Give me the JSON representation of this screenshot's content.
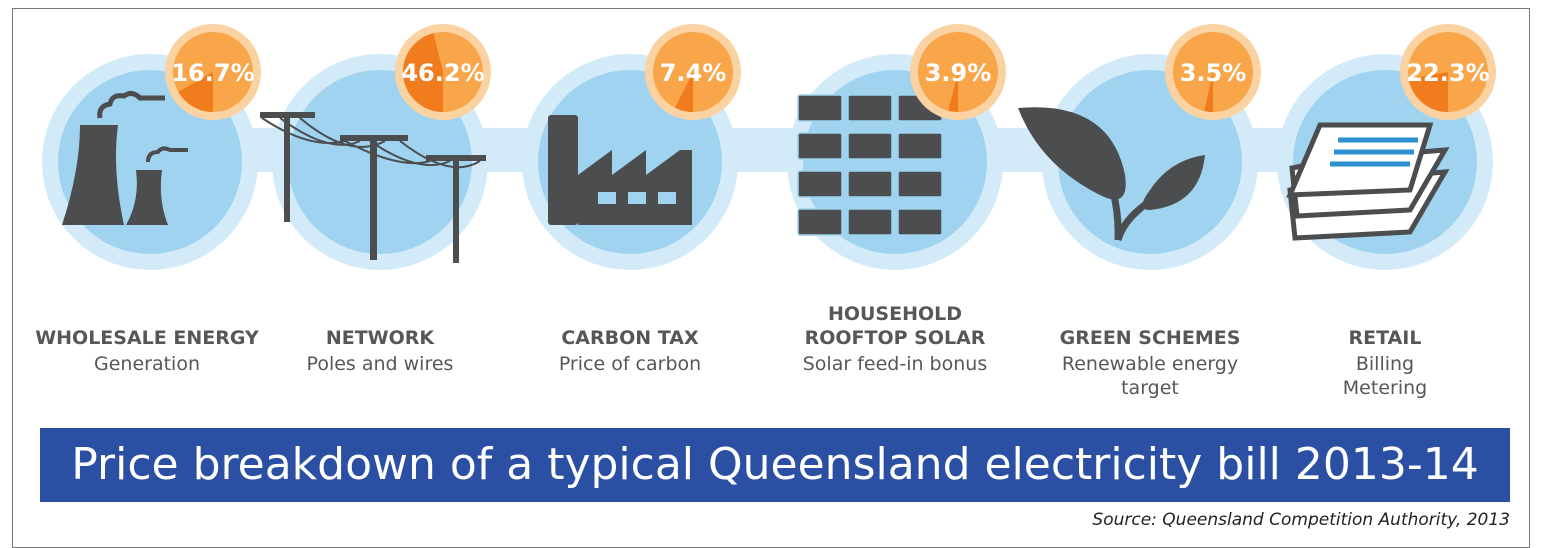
{
  "chart_data": {
    "type": "pie",
    "title": "Price breakdown of a typical Queensland electricity bill 2013-14",
    "source": "Source: Queensland Competition Authority, 2013",
    "items": [
      {
        "title": [
          "WHOLESALE ENERGY"
        ],
        "description": [
          "Generation"
        ]
      },
      {
        "title": [
          "NETWORK"
        ],
        "description": [
          "Poles and wires"
        ]
      },
      {
        "title": [
          "CARBON TAX"
        ],
        "description": [
          "Price of carbon"
        ]
      },
      {
        "title": [
          "HOUSEHOLD",
          "ROOFTOP SOLAR"
        ],
        "description": [
          "Solar feed-in bonus"
        ]
      },
      {
        "title": [
          "GREEN SCHEMES"
        ],
        "description": [
          "Renewable energy",
          "target"
        ]
      },
      {
        "title": [
          "RETAIL"
        ],
        "description": [
          "Billing",
          "Metering"
        ]
      }
    ],
    "values": [
      16.7,
      46.2,
      7.4,
      3.9,
      3.5,
      22.3
    ],
    "value_labels": [
      "16.7%",
      "46.2%",
      "7.4%",
      "3.9%",
      "3.5%",
      "22.3%"
    ],
    "color": "#f07c1e"
  }
}
